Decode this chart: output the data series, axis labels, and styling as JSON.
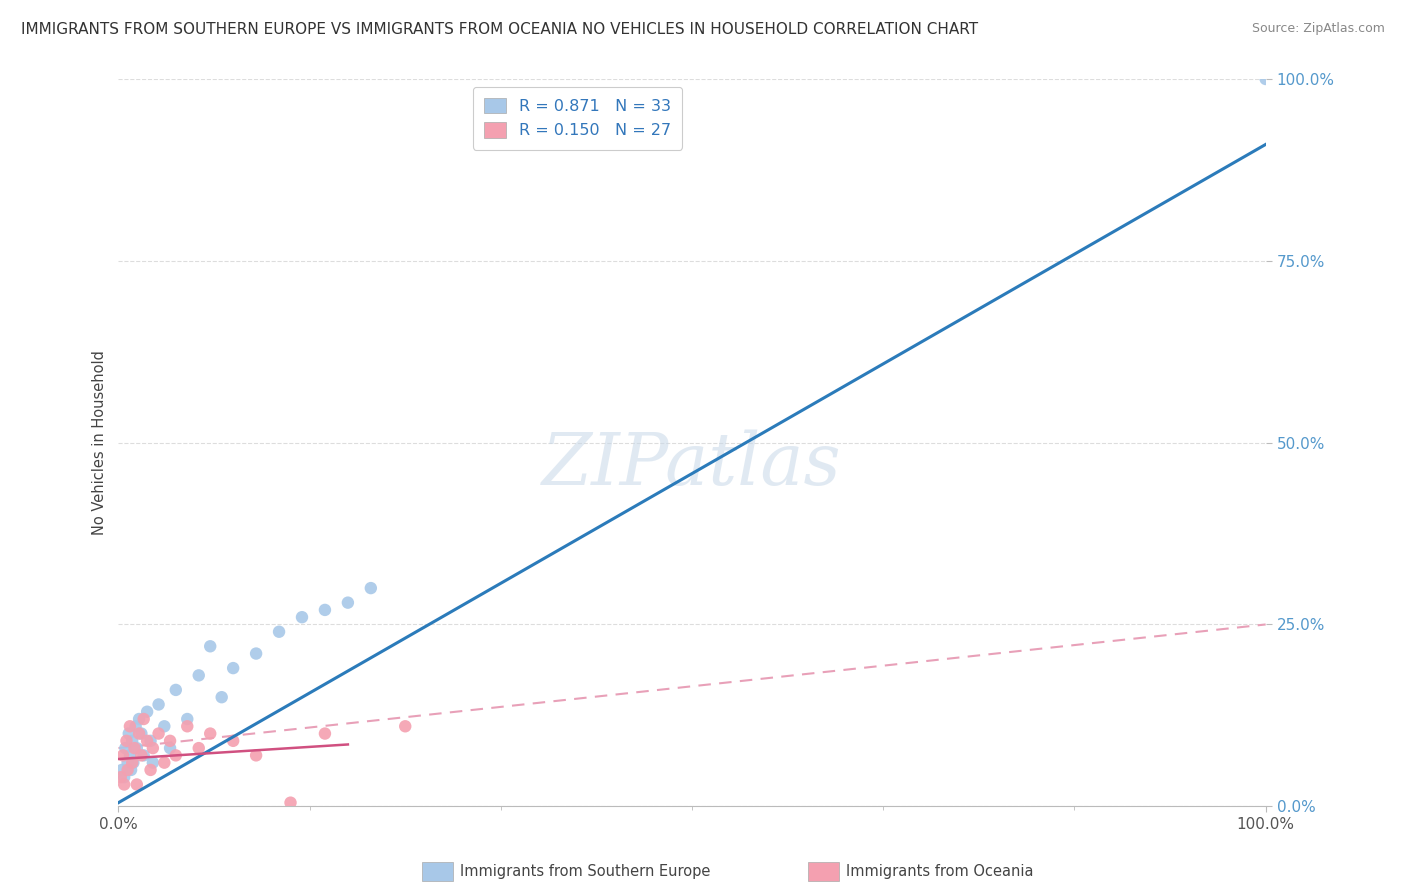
{
  "title": "IMMIGRANTS FROM SOUTHERN EUROPE VS IMMIGRANTS FROM OCEANIA NO VEHICLES IN HOUSEHOLD CORRELATION CHART",
  "source": "Source: ZipAtlas.com",
  "ylabel": "No Vehicles in Household",
  "watermark_text": "ZIPatlas",
  "blue_R": 0.871,
  "blue_N": 33,
  "pink_R": 0.15,
  "pink_N": 27,
  "blue_dot_color": "#a8c8e8",
  "pink_dot_color": "#f4a0b0",
  "blue_line_color": "#2b7bba",
  "pink_line_color": "#d05080",
  "pink_dash_color": "#e8a0b8",
  "grid_color": "#cccccc",
  "background_color": "#ffffff",
  "blue_scatter_x": [
    0.3,
    0.5,
    0.6,
    0.8,
    0.9,
    1.0,
    1.1,
    1.2,
    1.3,
    1.5,
    1.6,
    1.8,
    2.0,
    2.2,
    2.5,
    2.8,
    3.0,
    3.5,
    4.0,
    4.5,
    5.0,
    6.0,
    7.0,
    8.0,
    9.0,
    10.0,
    12.0,
    14.0,
    16.0,
    18.0,
    20.0,
    22.0,
    100.0
  ],
  "blue_scatter_y": [
    5.0,
    4.0,
    8.0,
    6.0,
    10.0,
    7.0,
    5.0,
    9.0,
    6.0,
    11.0,
    8.0,
    12.0,
    10.0,
    7.0,
    13.0,
    9.0,
    6.0,
    14.0,
    11.0,
    8.0,
    16.0,
    12.0,
    18.0,
    22.0,
    15.0,
    19.0,
    21.0,
    24.0,
    26.0,
    27.0,
    28.0,
    30.0,
    100.0
  ],
  "pink_scatter_x": [
    0.2,
    0.4,
    0.5,
    0.7,
    0.8,
    1.0,
    1.2,
    1.4,
    1.6,
    1.8,
    2.0,
    2.2,
    2.5,
    2.8,
    3.0,
    3.5,
    4.0,
    4.5,
    5.0,
    6.0,
    7.0,
    8.0,
    10.0,
    12.0,
    15.0,
    18.0,
    25.0
  ],
  "pink_scatter_y": [
    4.0,
    7.0,
    3.0,
    9.0,
    5.0,
    11.0,
    6.0,
    8.0,
    3.0,
    10.0,
    7.0,
    12.0,
    9.0,
    5.0,
    8.0,
    10.0,
    6.0,
    9.0,
    7.0,
    11.0,
    8.0,
    10.0,
    9.0,
    7.0,
    0.5,
    10.0,
    11.0
  ],
  "blue_line_x0": 0.0,
  "blue_line_y0": 0.5,
  "blue_line_x1": 100.0,
  "blue_line_y1": 91.0,
  "pink_solid_x0": 0.0,
  "pink_solid_y0": 6.5,
  "pink_solid_x1": 20.0,
  "pink_solid_y1": 8.5,
  "pink_dash_x0": 0.0,
  "pink_dash_y0": 8.0,
  "pink_dash_x1": 100.0,
  "pink_dash_y1": 25.0,
  "xlim": [
    0,
    100
  ],
  "ylim": [
    0,
    100
  ],
  "ytick_labels": [
    "0.0%",
    "25.0%",
    "50.0%",
    "75.0%",
    "100.0%"
  ],
  "ytick_values": [
    0,
    25,
    50,
    75,
    100
  ],
  "xtick_labels": [
    "0.0%",
    "100.0%"
  ],
  "xtick_values": [
    0,
    100
  ],
  "legend_label_blue": "R = 0.871   N = 33",
  "legend_label_pink": "R = 0.150   N = 27",
  "bottom_legend_blue": "Immigrants from Southern Europe",
  "bottom_legend_pink": "Immigrants from Oceania"
}
